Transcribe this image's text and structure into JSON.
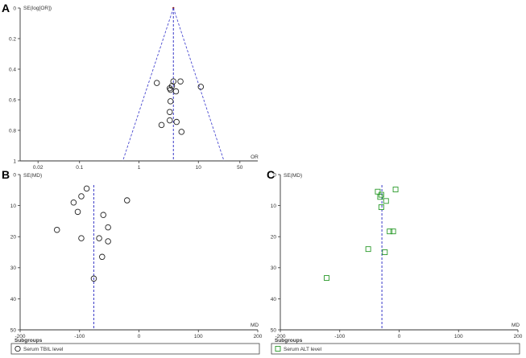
{
  "colors": {
    "axis": "#333333",
    "reference_line": "#3a3ac8",
    "funnel": "#4a4ad0",
    "marker_black": "#222222",
    "marker_green": "#2a9a2a",
    "summit_dot": "#8a1a1a"
  },
  "chart_data": [
    {
      "panel_letter": "A",
      "type": "scatter",
      "title": "",
      "xlabel": "OR",
      "ylabel": "SE(log[OR])",
      "xscale": "log",
      "xlim": [
        0.01,
        100
      ],
      "ylim": [
        1,
        0
      ],
      "y_inverted": true,
      "xticks": [
        {
          "value": 0.02,
          "label": "0.02"
        },
        {
          "value": 0.1,
          "label": "0.1"
        },
        {
          "value": 1,
          "label": "1"
        },
        {
          "value": 10,
          "label": "10"
        },
        {
          "value": 50,
          "label": "50"
        }
      ],
      "yticks": [
        {
          "value": 0,
          "label": "0"
        },
        {
          "value": 0.2,
          "label": "0.2"
        },
        {
          "value": 0.4,
          "label": "0.4"
        },
        {
          "value": 0.6,
          "label": "0.6"
        },
        {
          "value": 0.8,
          "label": "0.8"
        },
        {
          "value": 1,
          "label": "1"
        }
      ],
      "summary_x": 3.8,
      "funnel": true,
      "marker": "circle",
      "marker_color_key": "marker_black",
      "points": [
        {
          "x": 2.0,
          "y": 0.49
        },
        {
          "x": 3.8,
          "y": 0.48
        },
        {
          "x": 5.0,
          "y": 0.48
        },
        {
          "x": 11.0,
          "y": 0.515
        },
        {
          "x": 3.6,
          "y": 0.51
        },
        {
          "x": 3.3,
          "y": 0.525
        },
        {
          "x": 3.4,
          "y": 0.535
        },
        {
          "x": 4.2,
          "y": 0.545
        },
        {
          "x": 3.4,
          "y": 0.61
        },
        {
          "x": 3.3,
          "y": 0.68
        },
        {
          "x": 3.3,
          "y": 0.735
        },
        {
          "x": 4.3,
          "y": 0.745
        },
        {
          "x": 2.4,
          "y": 0.765
        },
        {
          "x": 5.2,
          "y": 0.81
        }
      ]
    },
    {
      "panel_letter": "B",
      "type": "scatter",
      "title": "",
      "xlabel": "MD",
      "ylabel": "SE(MD)",
      "xlim": [
        -200,
        200
      ],
      "ylim": [
        50,
        0
      ],
      "y_inverted": true,
      "xticks": [
        {
          "value": -200,
          "label": "-200"
        },
        {
          "value": -100,
          "label": "-100"
        },
        {
          "value": 0,
          "label": "0"
        },
        {
          "value": 100,
          "label": "100"
        },
        {
          "value": 200,
          "label": "200"
        }
      ],
      "yticks": [
        {
          "value": 0,
          "label": "0"
        },
        {
          "value": 10,
          "label": "10"
        },
        {
          "value": 20,
          "label": "20"
        },
        {
          "value": 30,
          "label": "30"
        },
        {
          "value": 40,
          "label": "40"
        },
        {
          "value": 50,
          "label": "50"
        }
      ],
      "summary_x": -76,
      "funnel": false,
      "marker": "circle",
      "marker_color_key": "marker_black",
      "points": [
        {
          "x": -88,
          "y": 4.5
        },
        {
          "x": -97,
          "y": 7
        },
        {
          "x": -110,
          "y": 9
        },
        {
          "x": -20,
          "y": 8.3
        },
        {
          "x": -103,
          "y": 12
        },
        {
          "x": -60,
          "y": 13
        },
        {
          "x": -52,
          "y": 17
        },
        {
          "x": -138,
          "y": 17.8
        },
        {
          "x": -97,
          "y": 20.5
        },
        {
          "x": -67,
          "y": 20.5
        },
        {
          "x": -52,
          "y": 21.5
        },
        {
          "x": -62,
          "y": 26.5
        },
        {
          "x": -76,
          "y": 33.5
        }
      ],
      "legend": {
        "title": "Subgroups",
        "label": "Serum TBIL level",
        "placement": "bottom"
      }
    },
    {
      "panel_letter": "C",
      "type": "scatter",
      "title": "",
      "xlabel": "MD",
      "ylabel": "SE(MD)",
      "xlim": [
        -200,
        200
      ],
      "ylim": [
        50,
        0
      ],
      "y_inverted": true,
      "xticks": [
        {
          "value": -200,
          "label": "-200"
        },
        {
          "value": -100,
          "label": "-100"
        },
        {
          "value": 0,
          "label": "0"
        },
        {
          "value": 100,
          "label": "100"
        },
        {
          "value": 200,
          "label": "200"
        }
      ],
      "yticks": [
        {
          "value": 0,
          "label": "0"
        },
        {
          "value": 10,
          "label": "10"
        },
        {
          "value": 20,
          "label": "20"
        },
        {
          "value": 30,
          "label": "30"
        },
        {
          "value": 40,
          "label": "40"
        },
        {
          "value": 50,
          "label": "50"
        }
      ],
      "summary_x": -29,
      "funnel": false,
      "marker": "square",
      "marker_color_key": "marker_green",
      "points": [
        {
          "x": -36,
          "y": 5.5
        },
        {
          "x": -6,
          "y": 4.8
        },
        {
          "x": -30,
          "y": 6.5
        },
        {
          "x": -32,
          "y": 7.2
        },
        {
          "x": -22,
          "y": 8.5
        },
        {
          "x": -30,
          "y": 10.5
        },
        {
          "x": -16,
          "y": 18.3
        },
        {
          "x": -10,
          "y": 18.3
        },
        {
          "x": -52,
          "y": 24
        },
        {
          "x": -24,
          "y": 25
        },
        {
          "x": -122,
          "y": 33.3
        }
      ],
      "legend": {
        "title": "Subgroups",
        "label": "Serum ALT level",
        "placement": "bottom"
      }
    }
  ]
}
